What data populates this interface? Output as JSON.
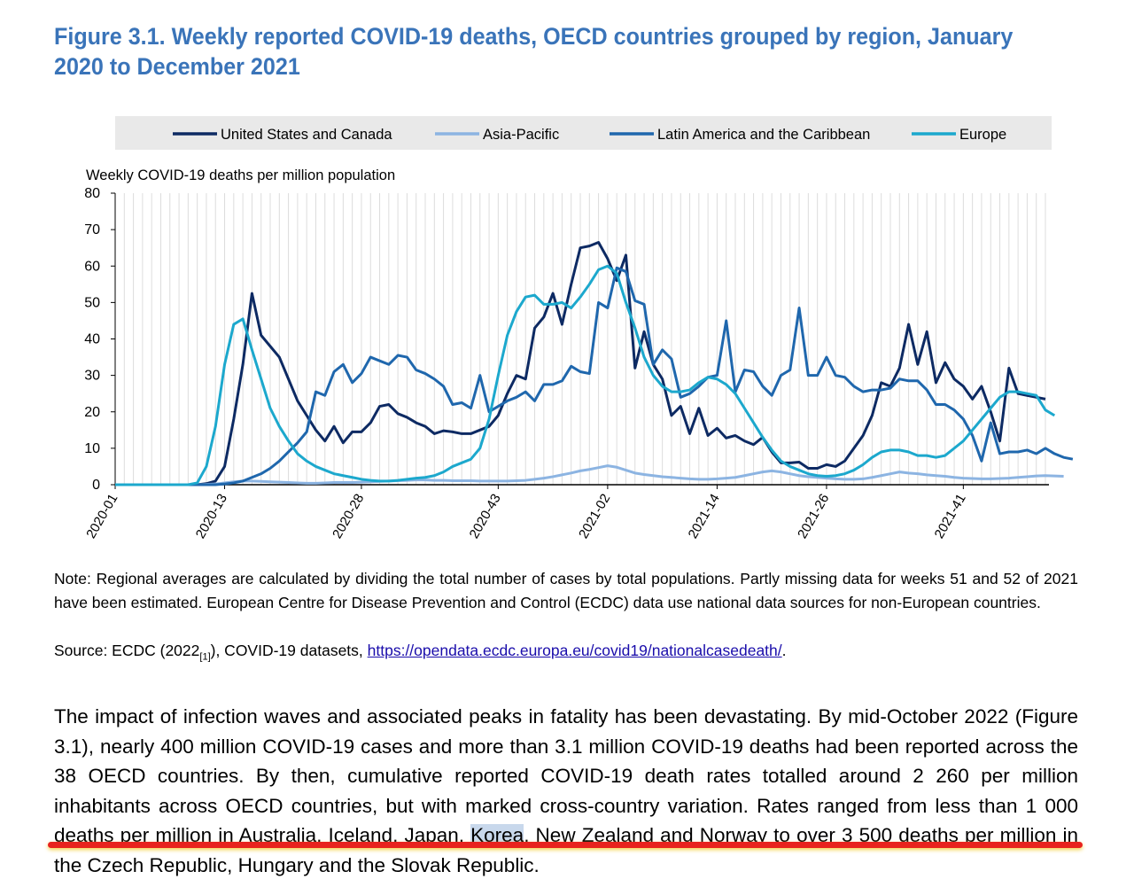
{
  "figure_title": "Figure 3.1. Weekly reported COVID-19 deaths, OECD countries grouped by region, January 2020 to December 2021",
  "note": "Note: Regional averages are calculated by dividing the total number of cases by total populations. Partly missing data for weeks 51 and 52 of 2021 have been estimated. European Centre for Disease Prevention and Control (ECDC) data use national data sources for non-European countries.",
  "source": {
    "prefix": "Source: ECDC (2022",
    "ref": "[1]",
    "middle": "), COVID-19 datasets, ",
    "link": "https://opendata.ecdc.europa.eu/covid19/nationalcasedeath/",
    "suffix": "."
  },
  "body": {
    "part1": "The impact of infection waves and associated peaks in fatality has been devastating. By mid-October 2022 (Figure 3.1), nearly 400 million COVID-19 cases and more than 3.1 million COVID-19 deaths had been reported across the 38 OECD countries. By then, cumulative reported COVID-19 death rates totalled around 2 260 per million inhabitants across OECD countries, but with marked cross-country variation. Rates ranged from less than 1 000 deaths per million in Australia, Iceland, Japan, ",
    "highlight": "Korea",
    "part2": ", New Zealand and Norway to over 3 500 deaths per million in the Czech Republic, Hungary and the Slovak Republic."
  },
  "chart_data": {
    "type": "line",
    "ylabel": "Weekly COVID-19 deaths per million population",
    "xlabel": "",
    "ylim": [
      0,
      80
    ],
    "yticks": [
      0,
      10,
      20,
      30,
      40,
      50,
      60,
      70,
      80
    ],
    "x_tick_labels": [
      {
        "label": "2020-01",
        "week_index": 0
      },
      {
        "label": "2020-13",
        "week_index": 12
      },
      {
        "label": "2020-28",
        "week_index": 27
      },
      {
        "label": "2020-43",
        "week_index": 42
      },
      {
        "label": "2021-02",
        "week_index": 54
      },
      {
        "label": "2021-14",
        "week_index": 66
      },
      {
        "label": "2021-26",
        "week_index": 78
      },
      {
        "label": "2021-41",
        "week_index": 93
      }
    ],
    "grid": "vertical",
    "legend_position": "top",
    "series": [
      {
        "name": "United States and Canada",
        "color": "#0d2a63",
        "values": [
          0,
          0,
          0,
          0,
          0,
          0,
          0,
          0,
          0,
          0,
          0.3,
          1,
          5,
          18,
          33,
          52.5,
          41,
          38,
          35,
          29,
          23,
          19,
          15,
          12,
          16,
          11.5,
          14.5,
          14.5,
          17,
          21.5,
          22,
          19.5,
          18.5,
          17,
          16,
          14,
          14.8,
          14.5,
          14,
          14,
          15,
          16,
          19,
          25,
          30,
          29,
          43,
          46,
          52.5,
          44,
          55,
          65,
          65.5,
          66.5,
          62,
          56,
          63,
          32,
          42,
          33,
          29,
          19,
          21.5,
          14,
          21,
          13.5,
          15.5,
          12.8,
          13.5,
          12,
          11,
          13,
          9,
          6,
          6,
          6.2,
          4.5,
          4.5,
          5.5,
          5,
          6.5,
          10,
          13.5,
          19,
          28,
          27,
          32,
          44,
          33,
          42,
          28,
          33.5,
          29,
          27,
          23.5,
          27,
          20,
          12,
          32,
          25,
          24.5,
          24,
          23.5
        ]
      },
      {
        "name": "Asia-Pacific",
        "color": "#8cb4e2",
        "values": [
          0,
          0,
          0,
          0,
          0,
          0,
          0,
          0,
          0,
          0,
          0.1,
          0.2,
          0.5,
          0.8,
          1,
          1,
          0.9,
          0.8,
          0.7,
          0.6,
          0.5,
          0.4,
          0.4,
          0.5,
          0.6,
          0.6,
          0.6,
          0.7,
          0.8,
          0.9,
          1,
          1.1,
          1.2,
          1.3,
          1.3,
          1.2,
          1.2,
          1.1,
          1.1,
          1.1,
          1,
          1,
          1,
          1,
          1.1,
          1.2,
          1.5,
          1.8,
          2.2,
          2.7,
          3.2,
          3.8,
          4.2,
          4.7,
          5.2,
          4.8,
          4,
          3.2,
          2.8,
          2.5,
          2.2,
          2,
          1.8,
          1.6,
          1.5,
          1.5,
          1.6,
          1.8,
          2,
          2.5,
          3,
          3.5,
          3.8,
          3.5,
          3,
          2.5,
          2.2,
          2,
          1.8,
          1.6,
          1.5,
          1.5,
          1.6,
          2,
          2.5,
          3,
          3.5,
          3.2,
          3,
          2.7,
          2.5,
          2.3,
          2,
          1.8,
          1.7,
          1.6,
          1.6,
          1.7,
          1.8,
          2,
          2.2,
          2.4,
          2.5,
          2.4,
          2.3
        ]
      },
      {
        "name": "Latin America and the Caribbean",
        "color": "#1f67ad",
        "values": [
          0,
          0,
          0,
          0,
          0,
          0,
          0,
          0,
          0,
          0,
          0,
          0,
          0.2,
          0.5,
          1,
          2,
          3,
          4.5,
          6.5,
          9,
          11.5,
          14.5,
          25.5,
          24.5,
          31,
          33,
          28,
          30.5,
          35,
          34,
          33,
          35.5,
          35,
          31.5,
          30.5,
          29,
          27,
          22,
          22.5,
          21,
          30,
          20,
          21.5,
          23,
          24,
          25.5,
          23,
          27.5,
          27.5,
          28.5,
          32.5,
          31,
          30.5,
          50,
          48.5,
          59.5,
          58.5,
          50.5,
          49.5,
          33,
          37,
          34.5,
          24,
          25,
          27,
          29.5,
          30,
          45,
          25.5,
          31.5,
          31,
          27,
          24.5,
          30,
          31.5,
          48.5,
          30,
          30,
          35,
          30,
          29.5,
          27,
          25.5,
          26,
          26,
          26.5,
          29,
          28.5,
          28.5,
          26,
          22,
          22,
          20.5,
          18,
          13.5,
          6.5,
          17,
          8.5,
          9,
          9,
          9.5,
          8.5,
          10,
          8.5,
          7.5,
          7
        ]
      },
      {
        "name": "Europe",
        "color": "#1ca8cd",
        "values": [
          0,
          0,
          0,
          0,
          0,
          0,
          0,
          0,
          0,
          0.5,
          5,
          16,
          33,
          44,
          45.5,
          37,
          29,
          21,
          16,
          12,
          8.5,
          6.5,
          5,
          4,
          3,
          2.5,
          2,
          1.5,
          1.2,
          1,
          1,
          1.2,
          1.5,
          1.8,
          2,
          2.5,
          3.5,
          5,
          6,
          7,
          10,
          18,
          30,
          41,
          47.5,
          51.5,
          52,
          49.5,
          49.5,
          50,
          48.5,
          51.5,
          55,
          59,
          60,
          58,
          50,
          43,
          35,
          30,
          27,
          25.5,
          25.5,
          26,
          28,
          29.5,
          29,
          27.5,
          25,
          21,
          17,
          13,
          9.5,
          6.5,
          5,
          4,
          3,
          2.5,
          2.3,
          2.5,
          3,
          4,
          5.5,
          7.5,
          9,
          9.5,
          9.5,
          9,
          8,
          8,
          7.5,
          8,
          10,
          12,
          15,
          18,
          21,
          24,
          25.5,
          25.5,
          25,
          24.5,
          20.5,
          19
        ]
      }
    ]
  }
}
